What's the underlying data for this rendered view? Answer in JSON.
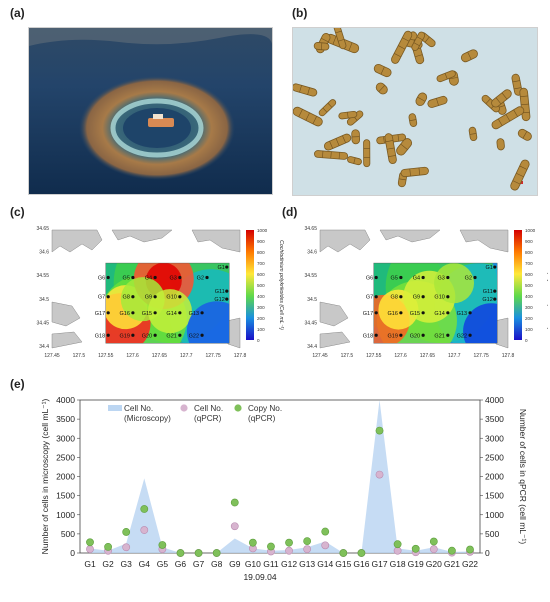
{
  "panels": {
    "a": {
      "label": "(a)"
    },
    "b": {
      "label": "(b)"
    },
    "c": {
      "label": "(c)"
    },
    "d": {
      "label": "(d)"
    },
    "e": {
      "label": "(e)"
    }
  },
  "maps": {
    "lat_ticks": [
      "34.65",
      "34.6",
      "34.55",
      "34.5",
      "34.45",
      "34.4"
    ],
    "lon_ticks": [
      "127.45",
      "127.5",
      "127.55",
      "127.6",
      "127.65",
      "127.7",
      "127.75",
      "127.8"
    ],
    "colorbar_ticks": [
      "1000",
      "900",
      "800",
      "700",
      "600",
      "500",
      "400",
      "300",
      "200",
      "100",
      "0"
    ],
    "colorbar_label": "Cochlodinium polykrikoides (Cell mL⁻¹)",
    "stations": [
      "G1",
      "G2",
      "G3",
      "G4",
      "G5",
      "G6",
      "G7",
      "G8",
      "G9",
      "G10",
      "G11",
      "G12",
      "G13",
      "G14",
      "G15",
      "G16",
      "G17",
      "G18",
      "G19",
      "G20",
      "G21",
      "G22"
    ]
  },
  "chart_data": {
    "type": "area",
    "categories": [
      "G1",
      "G2",
      "G3",
      "G4",
      "G5",
      "G6",
      "G7",
      "G8",
      "G9",
      "G10",
      "G11",
      "G12",
      "G13",
      "G14",
      "G15",
      "G16",
      "G17",
      "G18",
      "G19",
      "G20",
      "G21",
      "G22"
    ],
    "xlabel": "19.09.04",
    "ylabel_left": "Number of cells in microscopy (cell mL⁻¹)",
    "ylabel_right": "Number of cells in qPCR (cell mL⁻¹)",
    "ylim": [
      0,
      4000
    ],
    "yticks": [
      "0",
      "500",
      "1000",
      "1500",
      "2000",
      "2500",
      "3000",
      "3500",
      "4000"
    ],
    "series": [
      {
        "name": "Cell No. (Microscopy)",
        "kind": "area",
        "color": "#bcd6f2",
        "values": [
          120,
          60,
          250,
          1950,
          150,
          0,
          0,
          0,
          380,
          120,
          60,
          80,
          150,
          300,
          0,
          0,
          4000,
          120,
          60,
          150,
          30,
          40
        ]
      },
      {
        "name": "Cell No. (qPCR)",
        "kind": "marker",
        "color": "#d7b4cf",
        "values": [
          100,
          60,
          150,
          600,
          100,
          0,
          0,
          0,
          700,
          120,
          40,
          60,
          100,
          200,
          0,
          0,
          2050,
          60,
          20,
          100,
          10,
          30
        ]
      },
      {
        "name": "Copy No. (qPCR)",
        "kind": "marker",
        "color": "#7fc05a",
        "values": [
          280,
          160,
          550,
          1150,
          210,
          0,
          0,
          0,
          1320,
          270,
          170,
          270,
          310,
          560,
          0,
          0,
          3200,
          230,
          110,
          300,
          60,
          90
        ]
      }
    ],
    "legend": [
      "Cell No.\n(Microscopy)",
      "Cell No.\n(qPCR)",
      "Copy No.\n(qPCR)"
    ]
  }
}
